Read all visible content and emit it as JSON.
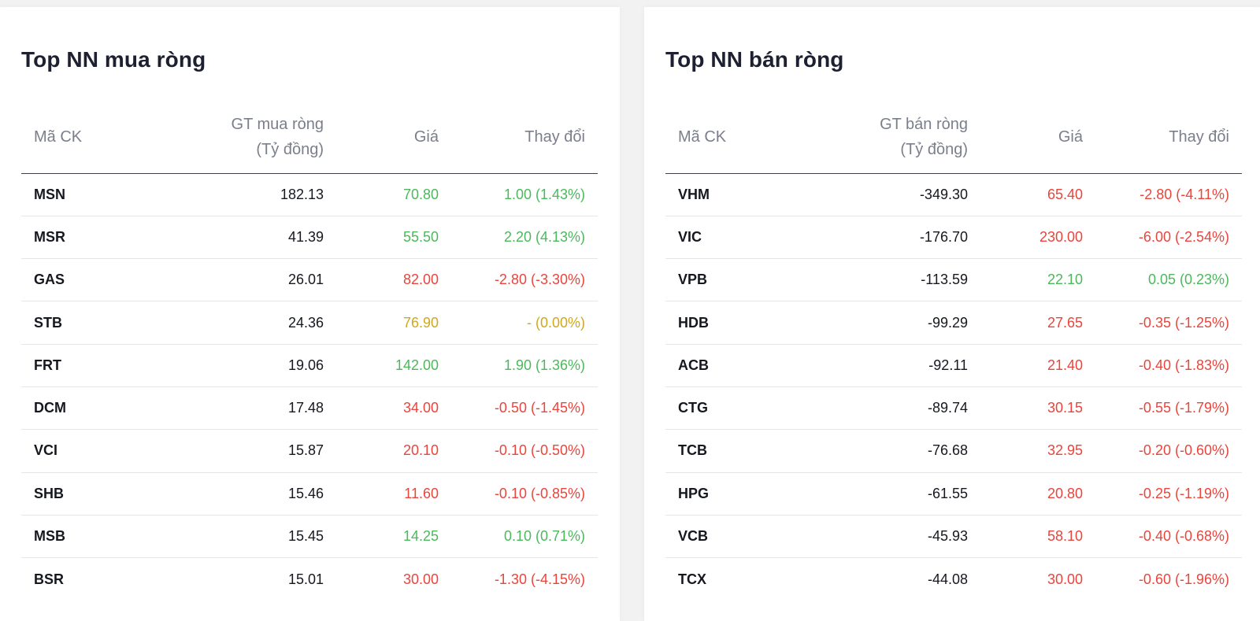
{
  "colors": {
    "up": "#4cb85c",
    "down": "#e9453c",
    "flat": "#cfa81d"
  },
  "buy": {
    "title": "Top NN mua ròng",
    "headers": {
      "symbol": "Mã CK",
      "value_line1": "GT mua ròng",
      "value_line2": "(Tỷ đồng)",
      "price": "Giá",
      "change": "Thay đổi"
    },
    "rows": [
      {
        "symbol": "MSN",
        "value": "182.13",
        "price": "70.80",
        "change": "1.00 (1.43%)",
        "trend": "up"
      },
      {
        "symbol": "MSR",
        "value": "41.39",
        "price": "55.50",
        "change": "2.20 (4.13%)",
        "trend": "up"
      },
      {
        "symbol": "GAS",
        "value": "26.01",
        "price": "82.00",
        "change": "-2.80 (-3.30%)",
        "trend": "down"
      },
      {
        "symbol": "STB",
        "value": "24.36",
        "price": "76.90",
        "change": "- (0.00%)",
        "trend": "flat"
      },
      {
        "symbol": "FRT",
        "value": "19.06",
        "price": "142.00",
        "change": "1.90 (1.36%)",
        "trend": "up"
      },
      {
        "symbol": "DCM",
        "value": "17.48",
        "price": "34.00",
        "change": "-0.50 (-1.45%)",
        "trend": "down"
      },
      {
        "symbol": "VCI",
        "value": "15.87",
        "price": "20.10",
        "change": "-0.10 (-0.50%)",
        "trend": "down"
      },
      {
        "symbol": "SHB",
        "value": "15.46",
        "price": "11.60",
        "change": "-0.10 (-0.85%)",
        "trend": "down"
      },
      {
        "symbol": "MSB",
        "value": "15.45",
        "price": "14.25",
        "change": "0.10 (0.71%)",
        "trend": "up"
      },
      {
        "symbol": "BSR",
        "value": "15.01",
        "price": "30.00",
        "change": "-1.30 (-4.15%)",
        "trend": "down"
      }
    ]
  },
  "sell": {
    "title": "Top NN bán ròng",
    "headers": {
      "symbol": "Mã CK",
      "value_line1": "GT bán ròng",
      "value_line2": "(Tỷ đồng)",
      "price": "Giá",
      "change": "Thay đổi"
    },
    "rows": [
      {
        "symbol": "VHM",
        "value": "-349.30",
        "price": "65.40",
        "change": "-2.80 (-4.11%)",
        "trend": "down"
      },
      {
        "symbol": "VIC",
        "value": "-176.70",
        "price": "230.00",
        "change": "-6.00 (-2.54%)",
        "trend": "down"
      },
      {
        "symbol": "VPB",
        "value": "-113.59",
        "price": "22.10",
        "change": "0.05 (0.23%)",
        "trend": "up"
      },
      {
        "symbol": "HDB",
        "value": "-99.29",
        "price": "27.65",
        "change": "-0.35 (-1.25%)",
        "trend": "down"
      },
      {
        "symbol": "ACB",
        "value": "-92.11",
        "price": "21.40",
        "change": "-0.40 (-1.83%)",
        "trend": "down"
      },
      {
        "symbol": "CTG",
        "value": "-89.74",
        "price": "30.15",
        "change": "-0.55 (-1.79%)",
        "trend": "down"
      },
      {
        "symbol": "TCB",
        "value": "-76.68",
        "price": "32.95",
        "change": "-0.20 (-0.60%)",
        "trend": "down"
      },
      {
        "symbol": "HPG",
        "value": "-61.55",
        "price": "20.80",
        "change": "-0.25 (-1.19%)",
        "trend": "down"
      },
      {
        "symbol": "VCB",
        "value": "-45.93",
        "price": "58.10",
        "change": "-0.40 (-0.68%)",
        "trend": "down"
      },
      {
        "symbol": "TCX",
        "value": "-44.08",
        "price": "30.00",
        "change": "-0.60 (-1.96%)",
        "trend": "down"
      }
    ]
  }
}
